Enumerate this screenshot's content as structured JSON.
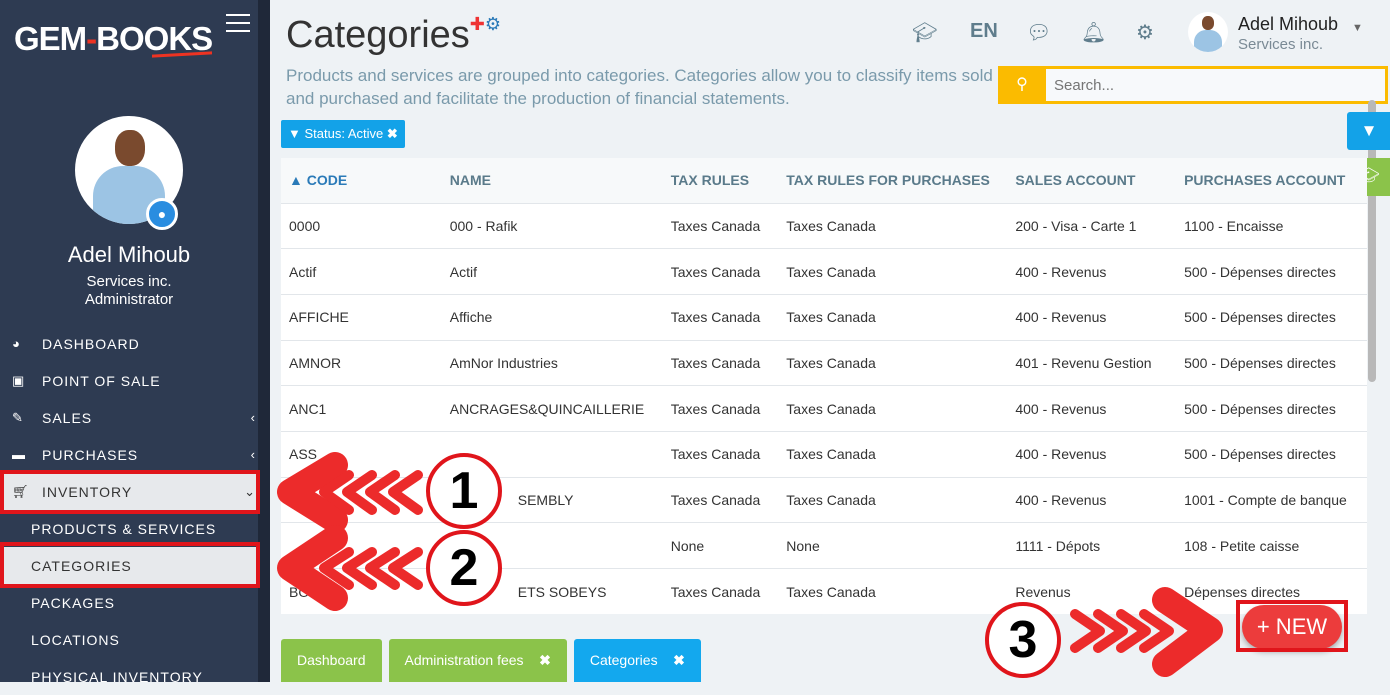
{
  "brand": {
    "name_a": "GEM",
    "name_b": "BOOKS",
    "accent": "#e32222"
  },
  "user": {
    "name": "Adel Mihoub",
    "company": "Services inc.",
    "role": "Administrator"
  },
  "sidebar": {
    "items": [
      {
        "label": "DASHBOARD",
        "icon": "dashboard-icon"
      },
      {
        "label": "POINT OF SALE",
        "icon": "money-icon"
      },
      {
        "label": "SALES",
        "icon": "edit-icon"
      },
      {
        "label": "PURCHASES",
        "icon": "credit-card-icon"
      },
      {
        "label": "INVENTORY",
        "icon": "cart-icon"
      }
    ],
    "subitems": [
      "PRODUCTS & SERVICES",
      "CATEGORIES",
      "PACKAGES",
      "LOCATIONS",
      "PHYSICAL INVENTORY"
    ]
  },
  "header": {
    "title": "Categories",
    "lang": "EN",
    "description": "Products and services are grouped into categories. Categories allow you to classify items sold and purchased and facilitate the production of financial statements."
  },
  "search": {
    "placeholder": "Search..."
  },
  "filter": {
    "chip": "Status: Active"
  },
  "table": {
    "columns": [
      "CODE",
      "NAME",
      "TAX RULES",
      "TAX RULES FOR PURCHASES",
      "SALES ACCOUNT",
      "PURCHASES ACCOUNT"
    ],
    "rows": [
      [
        "0000",
        "000 - Rafik",
        "Taxes Canada",
        "Taxes Canada",
        "200 - Visa - Carte 1",
        "1100 - Encaisse"
      ],
      [
        "Actif",
        "Actif",
        "Taxes Canada",
        "Taxes Canada",
        "400 - Revenus",
        "500 - Dépenses directes"
      ],
      [
        "AFFICHE",
        "Affiche",
        "Taxes Canada",
        "Taxes Canada",
        "400 - Revenus",
        "500 - Dépenses directes"
      ],
      [
        "AMNOR",
        "AmNor Industries",
        "Taxes Canada",
        "Taxes Canada",
        "401 - Revenu Gestion",
        "500 - Dépenses directes"
      ],
      [
        "ANC1",
        "ANCRAGES&QUINCAILLERIE",
        "Taxes Canada",
        "Taxes Canada",
        "400 - Revenus",
        "500 - Dépenses directes"
      ],
      [
        "ASS",
        "",
        "Taxes Canada",
        "Taxes Canada",
        "400 - Revenus",
        "500 - Dépenses directes"
      ],
      [
        "",
        "SEMBLY",
        "Taxes Canada",
        "Taxes Canada",
        "400 - Revenus",
        "1001 - Compte de banque"
      ],
      [
        "",
        "",
        "None",
        "None",
        "1111 - Dépots",
        "108 - Petite caisse"
      ],
      [
        "BO",
        "ETS SOBEYS",
        "Taxes Canada",
        "Taxes Canada",
        "Revenus",
        "Dépenses directes"
      ]
    ]
  },
  "tabs": [
    {
      "label": "Dashboard",
      "closable": false
    },
    {
      "label": "Administration fees",
      "closable": true
    },
    {
      "label": "Categories",
      "closable": true
    }
  ],
  "new_button": "+ NEW",
  "annotations": [
    "1",
    "2",
    "3"
  ]
}
